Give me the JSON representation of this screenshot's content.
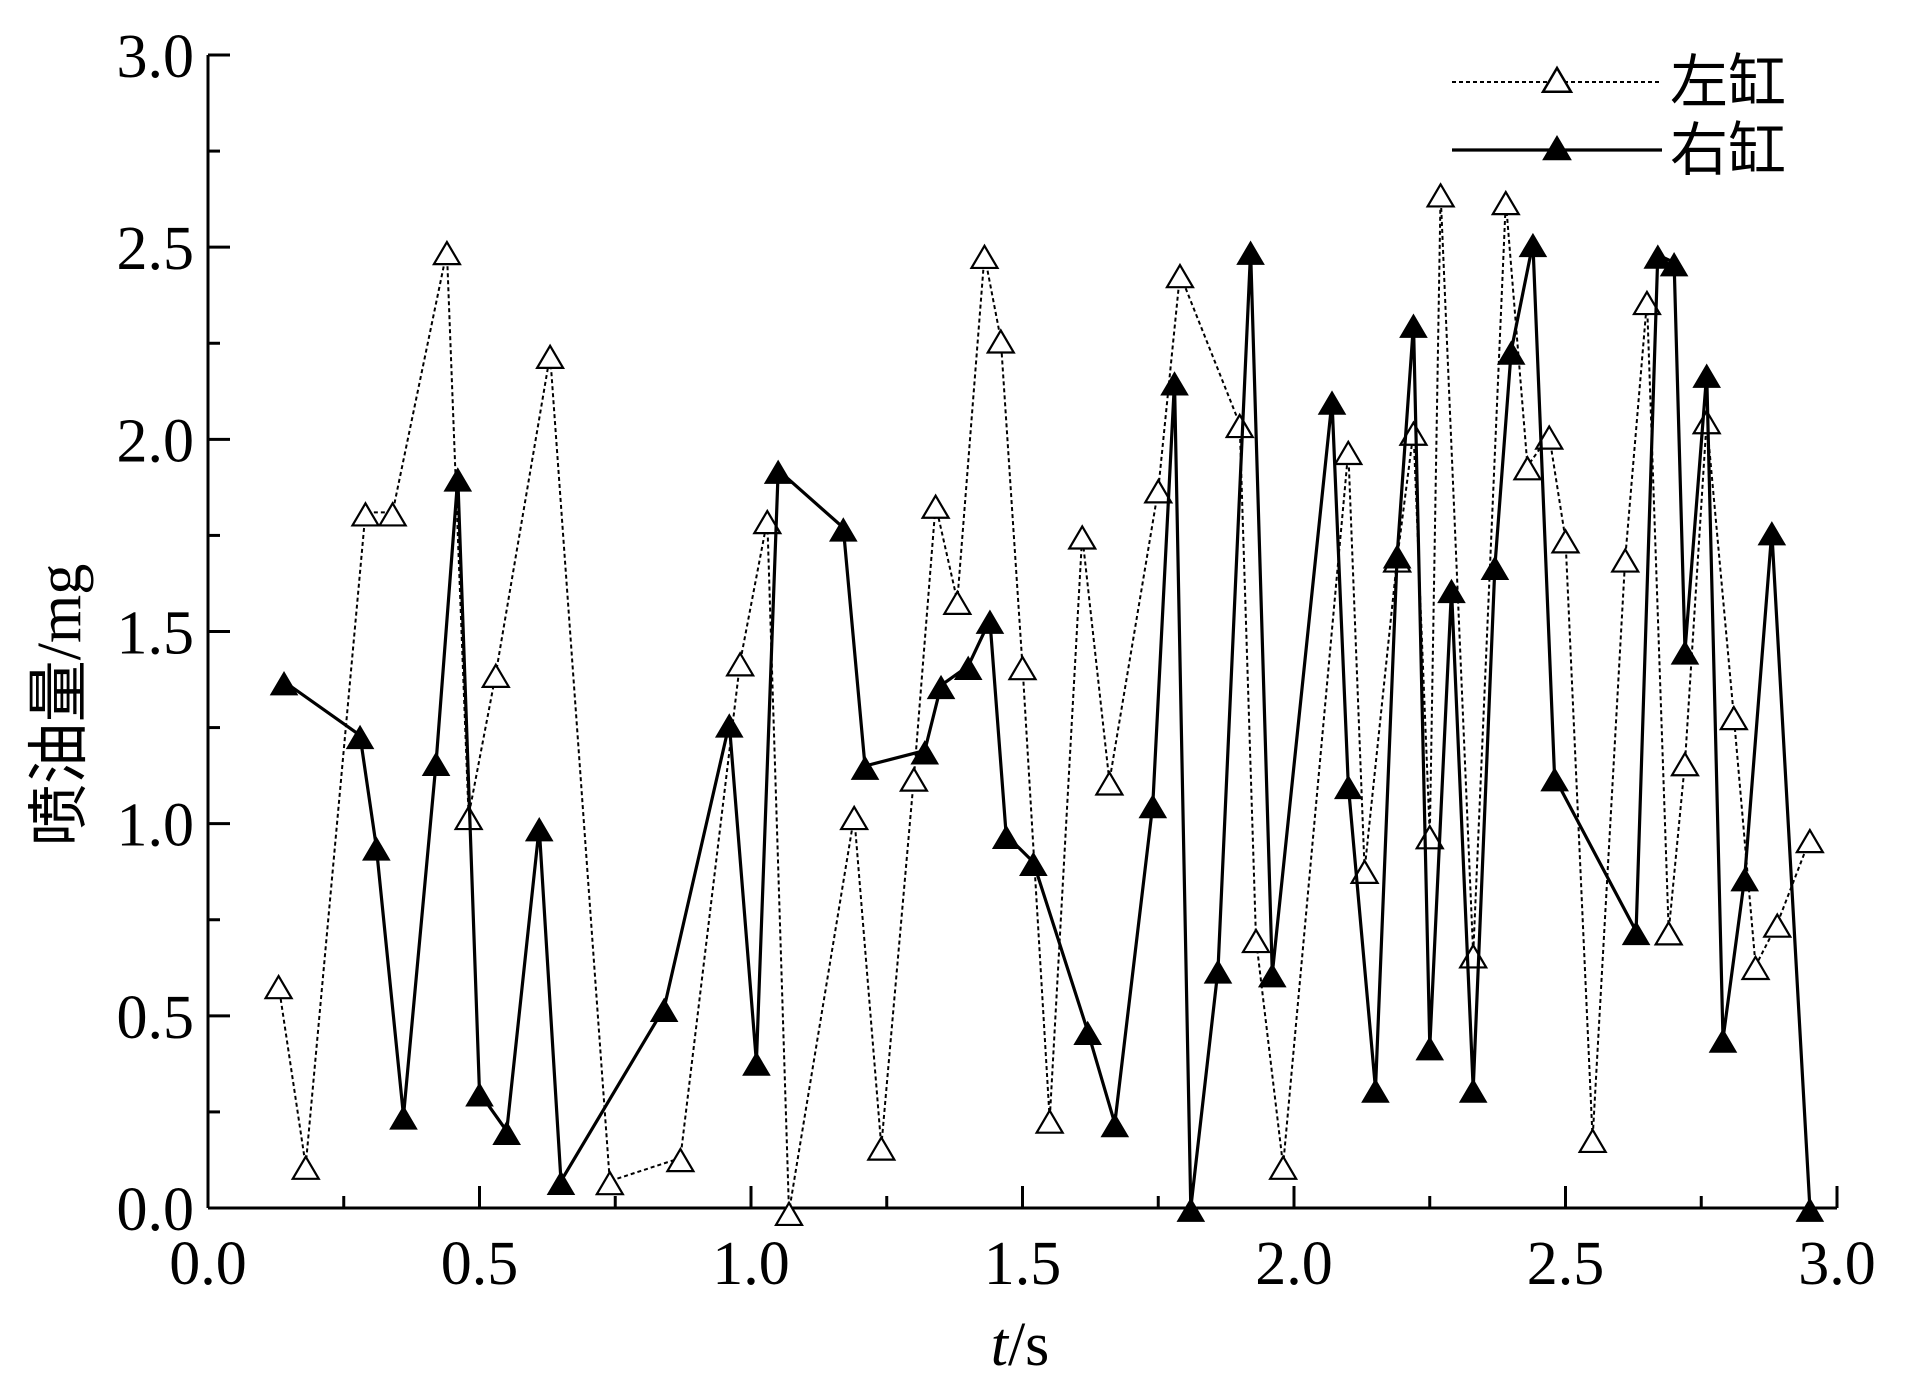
{
  "chart_data": {
    "type": "line",
    "xlabel_italic": "t",
    "xlabel_unit": "/s",
    "ylabel": "喷油量/mg",
    "xlim": [
      0.0,
      3.0
    ],
    "ylim": [
      0.0,
      3.0
    ],
    "x_ticks": [
      "0.0",
      "0.5",
      "1.0",
      "1.5",
      "2.0",
      "2.5",
      "3.0"
    ],
    "y_ticks": [
      "0.0",
      "0.5",
      "1.0",
      "1.5",
      "2.0",
      "2.5",
      "3.0"
    ],
    "legend_position": "top-right",
    "series": [
      {
        "name": "左缸",
        "style": "dotted",
        "marker": "open-triangle",
        "points": [
          [
            0.13,
            0.58
          ],
          [
            0.18,
            0.11
          ],
          [
            0.29,
            1.81
          ],
          [
            0.34,
            1.81
          ],
          [
            0.44,
            2.49
          ],
          [
            0.48,
            1.02
          ],
          [
            0.53,
            1.39
          ],
          [
            0.63,
            2.22
          ],
          [
            0.74,
            0.07
          ],
          [
            0.87,
            0.13
          ],
          [
            0.98,
            1.42
          ],
          [
            1.03,
            1.79
          ],
          [
            1.07,
            -0.01
          ],
          [
            1.19,
            1.02
          ],
          [
            1.24,
            0.16
          ],
          [
            1.3,
            1.12
          ],
          [
            1.34,
            1.83
          ],
          [
            1.38,
            1.58
          ],
          [
            1.43,
            2.48
          ],
          [
            1.46,
            2.26
          ],
          [
            1.5,
            1.41
          ],
          [
            1.55,
            0.23
          ],
          [
            1.61,
            1.75
          ],
          [
            1.66,
            1.11
          ],
          [
            1.75,
            1.87
          ],
          [
            1.79,
            2.43
          ],
          [
            1.9,
            2.04
          ],
          [
            1.93,
            0.7
          ],
          [
            1.98,
            0.11
          ],
          [
            2.1,
            1.97
          ],
          [
            2.13,
            0.88
          ],
          [
            2.19,
            1.69
          ],
          [
            2.22,
            2.02
          ],
          [
            2.25,
            0.97
          ],
          [
            2.27,
            2.64
          ],
          [
            2.33,
            0.66
          ],
          [
            2.39,
            2.62
          ],
          [
            2.43,
            1.93
          ],
          [
            2.47,
            2.01
          ],
          [
            2.5,
            1.74
          ],
          [
            2.55,
            0.18
          ],
          [
            2.61,
            1.69
          ],
          [
            2.65,
            2.36
          ],
          [
            2.69,
            0.72
          ],
          [
            2.72,
            1.16
          ],
          [
            2.76,
            2.05
          ],
          [
            2.81,
            1.28
          ],
          [
            2.85,
            0.63
          ],
          [
            2.89,
            0.74
          ],
          [
            2.95,
            0.96
          ]
        ]
      },
      {
        "name": "右缸",
        "style": "solid",
        "marker": "filled-triangle",
        "points": [
          [
            0.14,
            1.37
          ],
          [
            0.28,
            1.23
          ],
          [
            0.31,
            0.94
          ],
          [
            0.36,
            0.24
          ],
          [
            0.42,
            1.16
          ],
          [
            0.46,
            1.9
          ],
          [
            0.5,
            0.3
          ],
          [
            0.55,
            0.2
          ],
          [
            0.61,
            0.99
          ],
          [
            0.65,
            0.07
          ],
          [
            0.84,
            0.52
          ],
          [
            0.96,
            1.26
          ],
          [
            1.01,
            0.38
          ],
          [
            1.05,
            1.92
          ],
          [
            1.17,
            1.77
          ],
          [
            1.21,
            1.15
          ],
          [
            1.32,
            1.19
          ],
          [
            1.35,
            1.36
          ],
          [
            1.4,
            1.41
          ],
          [
            1.44,
            1.53
          ],
          [
            1.47,
            0.97
          ],
          [
            1.52,
            0.9
          ],
          [
            1.62,
            0.46
          ],
          [
            1.67,
            0.22
          ],
          [
            1.74,
            1.05
          ],
          [
            1.78,
            2.15
          ],
          [
            1.81,
            0.0
          ],
          [
            1.86,
            0.62
          ],
          [
            1.92,
            2.49
          ],
          [
            1.96,
            0.61
          ],
          [
            2.07,
            2.1
          ],
          [
            2.1,
            1.1
          ],
          [
            2.15,
            0.31
          ],
          [
            2.19,
            1.7
          ],
          [
            2.22,
            2.3
          ],
          [
            2.25,
            0.42
          ],
          [
            2.29,
            1.61
          ],
          [
            2.33,
            0.31
          ],
          [
            2.37,
            1.67
          ],
          [
            2.4,
            2.23
          ],
          [
            2.44,
            2.51
          ],
          [
            2.48,
            1.12
          ],
          [
            2.63,
            0.72
          ],
          [
            2.67,
            2.48
          ],
          [
            2.7,
            2.46
          ],
          [
            2.72,
            1.45
          ],
          [
            2.76,
            2.17
          ],
          [
            2.79,
            0.44
          ],
          [
            2.83,
            0.86
          ],
          [
            2.88,
            1.76
          ],
          [
            2.95,
            0.0
          ]
        ]
      }
    ]
  }
}
